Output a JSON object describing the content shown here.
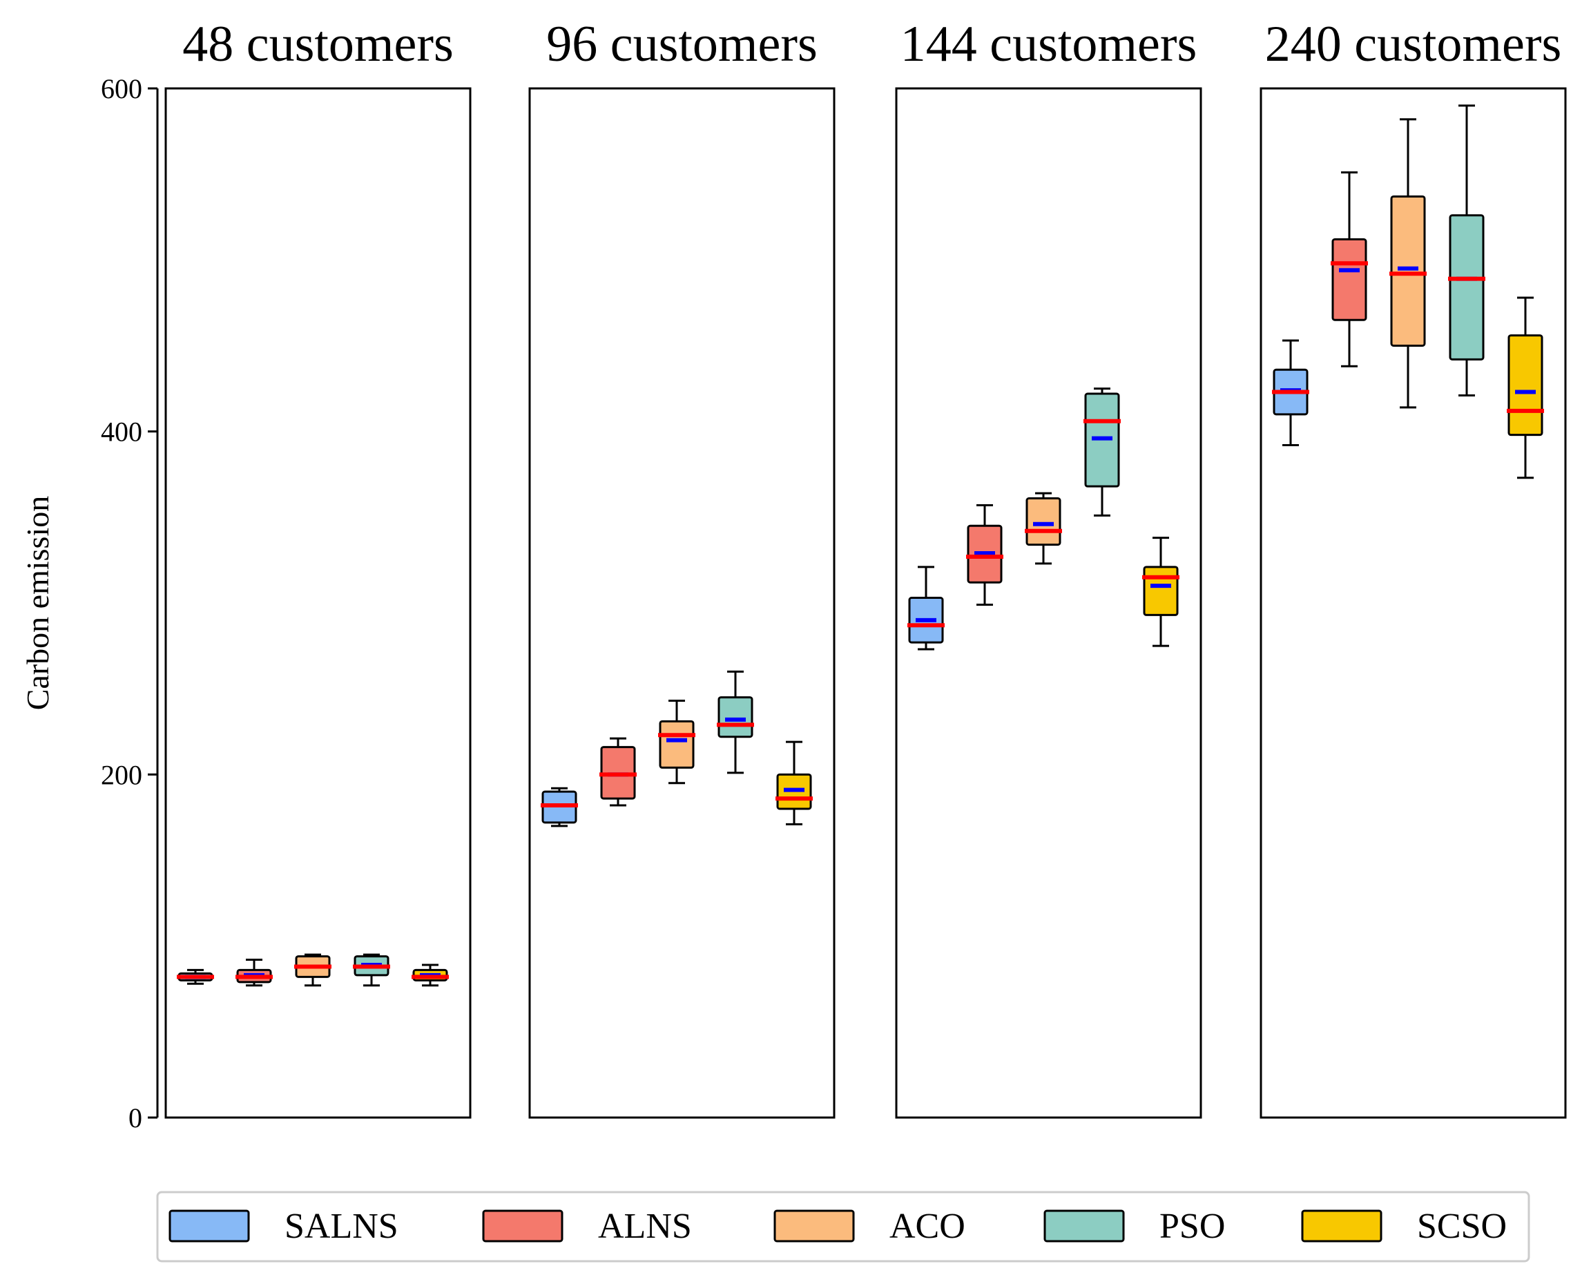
{
  "chart_data": {
    "type": "box",
    "ylabel": "Carbon emission",
    "ylim": [
      0,
      600
    ],
    "yticks": [
      "0",
      "200",
      "400",
      "600"
    ],
    "grid": false,
    "legend_position": "bottom",
    "methods": [
      "SALNS",
      "ALNS",
      "ACO",
      "PSO",
      "SCSO"
    ],
    "method_colors": [
      "#87B9F6",
      "#F4796C",
      "#FBBB7D",
      "#8CCDC2",
      "#F8C800"
    ],
    "median_color": "#FF0000",
    "mean_color": "#0000FF",
    "panels": [
      {
        "title": "48 customers",
        "boxes": [
          {
            "method": "SALNS",
            "whislo": 78,
            "q1": 80,
            "median": 82,
            "q3": 84,
            "whishi": 86,
            "mean": 82
          },
          {
            "method": "ALNS",
            "whislo": 77,
            "q1": 79,
            "median": 82,
            "q3": 86,
            "whishi": 92,
            "mean": 83
          },
          {
            "method": "ACO",
            "whislo": 77,
            "q1": 82,
            "median": 88,
            "q3": 94,
            "whishi": 95,
            "mean": 88
          },
          {
            "method": "PSO",
            "whislo": 77,
            "q1": 83,
            "median": 88,
            "q3": 94,
            "whishi": 95,
            "mean": 89
          },
          {
            "method": "SCSO",
            "whislo": 77,
            "q1": 80,
            "median": 82,
            "q3": 86,
            "whishi": 89,
            "mean": 83
          }
        ]
      },
      {
        "title": "96 customers",
        "boxes": [
          {
            "method": "SALNS",
            "whislo": 170,
            "q1": 172,
            "median": 182,
            "q3": 190,
            "whishi": 192,
            "mean": 182
          },
          {
            "method": "ALNS",
            "whislo": 182,
            "q1": 186,
            "median": 200,
            "q3": 216,
            "whishi": 221,
            "mean": 200
          },
          {
            "method": "ACO",
            "whislo": 195,
            "q1": 204,
            "median": 223,
            "q3": 231,
            "whishi": 243,
            "mean": 220
          },
          {
            "method": "PSO",
            "whislo": 201,
            "q1": 222,
            "median": 229,
            "q3": 245,
            "whishi": 260,
            "mean": 232
          },
          {
            "method": "SCSO",
            "whislo": 171,
            "q1": 180,
            "median": 186,
            "q3": 200,
            "whishi": 219,
            "mean": 191
          }
        ]
      },
      {
        "title": "144 customers",
        "boxes": [
          {
            "method": "SALNS",
            "whislo": 273,
            "q1": 277,
            "median": 287,
            "q3": 303,
            "whishi": 321,
            "mean": 290
          },
          {
            "method": "ALNS",
            "whislo": 299,
            "q1": 312,
            "median": 327,
            "q3": 345,
            "whishi": 357,
            "mean": 329
          },
          {
            "method": "ACO",
            "whislo": 323,
            "q1": 334,
            "median": 342,
            "q3": 361,
            "whishi": 364,
            "mean": 346
          },
          {
            "method": "PSO",
            "whislo": 351,
            "q1": 368,
            "median": 406,
            "q3": 422,
            "whishi": 425,
            "mean": 396
          },
          {
            "method": "SCSO",
            "whislo": 275,
            "q1": 293,
            "median": 315,
            "q3": 321,
            "whishi": 338,
            "mean": 310
          }
        ]
      },
      {
        "title": "240 customers",
        "boxes": [
          {
            "method": "SALNS",
            "whislo": 392,
            "q1": 410,
            "median": 423,
            "q3": 436,
            "whishi": 453,
            "mean": 424
          },
          {
            "method": "ALNS",
            "whislo": 438,
            "q1": 465,
            "median": 498,
            "q3": 512,
            "whishi": 551,
            "mean": 494
          },
          {
            "method": "ACO",
            "whislo": 414,
            "q1": 450,
            "median": 492,
            "q3": 537,
            "whishi": 582,
            "mean": 495
          },
          {
            "method": "PSO",
            "whislo": 421,
            "q1": 442,
            "median": 489,
            "q3": 526,
            "whishi": 590,
            "mean": 489
          },
          {
            "method": "SCSO",
            "whislo": 373,
            "q1": 398,
            "median": 412,
            "q3": 456,
            "whishi": 478,
            "mean": 423
          }
        ]
      }
    ]
  }
}
